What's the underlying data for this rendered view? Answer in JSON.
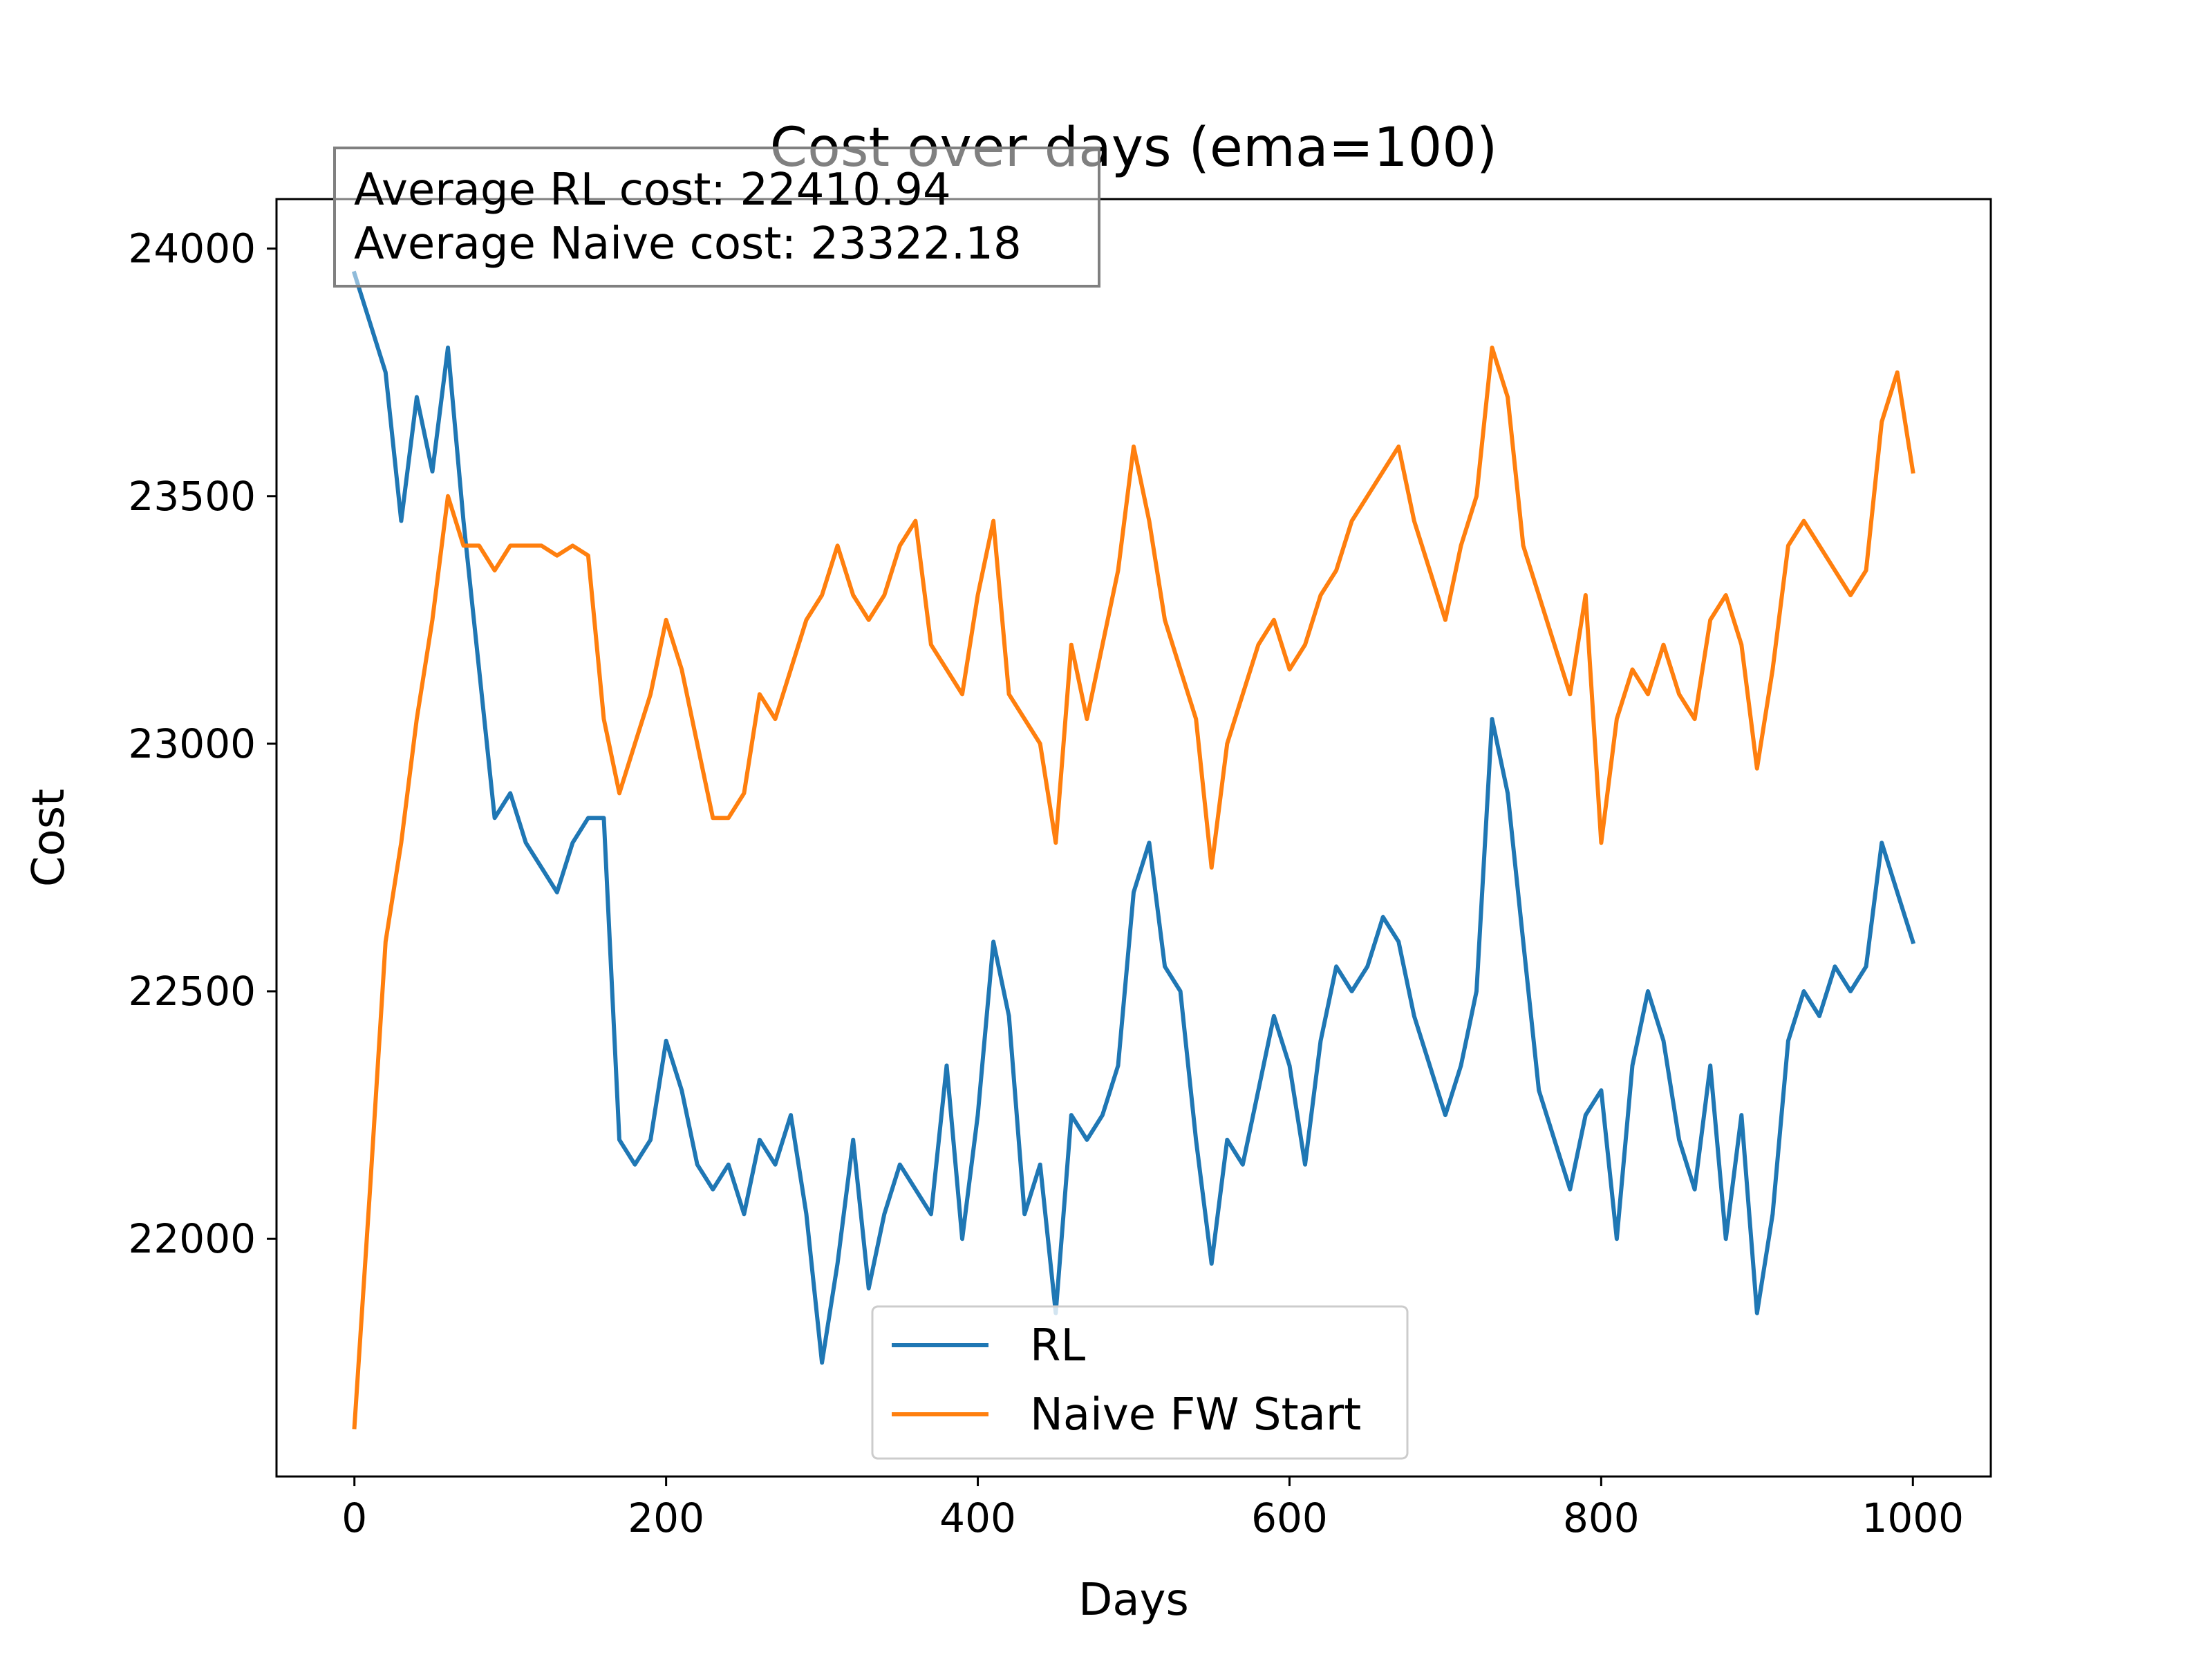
{
  "chart_data": {
    "type": "line",
    "title": "Cost over days (ema=100)",
    "xlabel": "Days",
    "ylabel": "Cost",
    "xlim": [
      -50,
      1050
    ],
    "ylim": [
      21520,
      24100
    ],
    "xticks": [
      0,
      200,
      400,
      600,
      800,
      1000
    ],
    "yticks": [
      22000,
      22500,
      23000,
      23500,
      24000
    ],
    "grid": false,
    "legend_position": "bottom-center",
    "annotation": {
      "lines": [
        "Average RL cost: 22410.94",
        "Average Naive cost: 23322.18"
      ]
    },
    "x": [
      0,
      10,
      20,
      30,
      40,
      50,
      60,
      70,
      80,
      90,
      100,
      110,
      120,
      130,
      140,
      150,
      160,
      170,
      180,
      190,
      200,
      210,
      220,
      230,
      240,
      250,
      260,
      270,
      280,
      290,
      300,
      310,
      320,
      330,
      340,
      350,
      360,
      370,
      380,
      390,
      400,
      410,
      420,
      430,
      440,
      450,
      460,
      470,
      480,
      490,
      500,
      510,
      520,
      530,
      540,
      550,
      560,
      570,
      580,
      590,
      600,
      610,
      620,
      630,
      640,
      650,
      660,
      670,
      680,
      690,
      700,
      710,
      720,
      730,
      740,
      750,
      760,
      770,
      780,
      790,
      800,
      810,
      820,
      830,
      840,
      850,
      860,
      870,
      880,
      890,
      900,
      910,
      920,
      930,
      940,
      950,
      960,
      970,
      980,
      990,
      1000
    ],
    "series": [
      {
        "name": "RL",
        "color": "#1f77b4",
        "values": [
          23950,
          23850,
          23750,
          23450,
          23700,
          23550,
          23800,
          23450,
          23150,
          22850,
          22900,
          22800,
          22750,
          22700,
          22800,
          22850,
          22850,
          22200,
          22150,
          22200,
          22400,
          22300,
          22150,
          22100,
          22150,
          22050,
          22200,
          22150,
          22250,
          22050,
          21750,
          21950,
          22200,
          21900,
          22050,
          22150,
          22100,
          22050,
          22350,
          22000,
          22250,
          22600,
          22450,
          22050,
          22150,
          21850,
          22250,
          22200,
          22250,
          22350,
          22700,
          22800,
          22550,
          22500,
          22200,
          21950,
          22200,
          22150,
          22300,
          22450,
          22350,
          22150,
          22400,
          22550,
          22500,
          22550,
          22650,
          22600,
          22450,
          22350,
          22250,
          22350,
          22500,
          23050,
          22900,
          22600,
          22300,
          22200,
          22100,
          22250,
          22300,
          22000,
          22350,
          22500,
          22400,
          22200,
          22100,
          22350,
          22000,
          22250,
          21850,
          22050,
          22400,
          22500,
          22450,
          22550,
          22500,
          22550,
          22800,
          22700,
          22600
        ]
      },
      {
        "name": "Naive FW Start",
        "color": "#ff7f0e",
        "values": [
          21620,
          22100,
          22600,
          22800,
          23050,
          23250,
          23500,
          23400,
          23400,
          23350,
          23400,
          23400,
          23400,
          23380,
          23400,
          23380,
          23050,
          22900,
          23000,
          23100,
          23250,
          23150,
          23000,
          22850,
          22850,
          22900,
          23100,
          23050,
          23150,
          23250,
          23300,
          23400,
          23300,
          23250,
          23300,
          23400,
          23450,
          23200,
          23150,
          23100,
          23300,
          23450,
          23100,
          23050,
          23000,
          22800,
          23200,
          23050,
          23200,
          23350,
          23600,
          23450,
          23250,
          23150,
          23050,
          22750,
          23000,
          23100,
          23200,
          23250,
          23150,
          23200,
          23300,
          23350,
          23450,
          23500,
          23550,
          23600,
          23450,
          23350,
          23250,
          23400,
          23500,
          23800,
          23700,
          23400,
          23300,
          23200,
          23100,
          23300,
          22800,
          23050,
          23150,
          23100,
          23200,
          23100,
          23050,
          23250,
          23300,
          23200,
          22950,
          23150,
          23400,
          23450,
          23400,
          23350,
          23300,
          23350,
          23650,
          23750,
          23550
        ]
      }
    ]
  }
}
